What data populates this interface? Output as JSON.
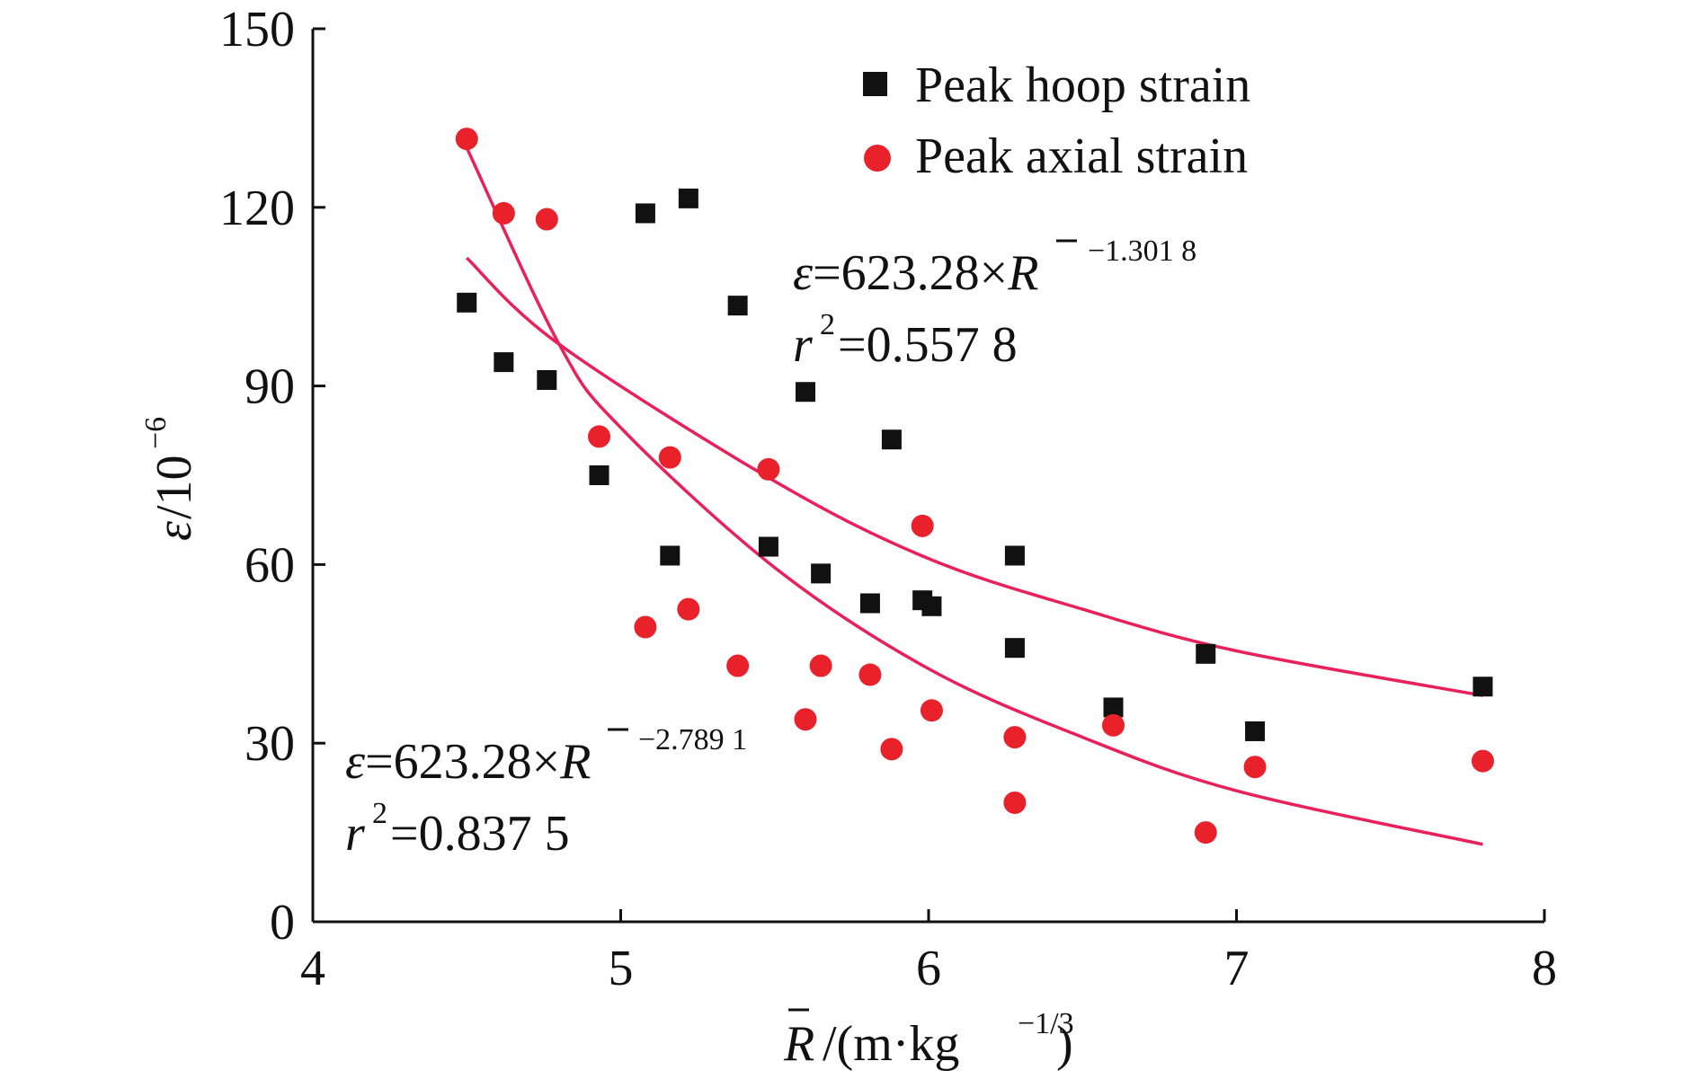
{
  "chart_data": {
    "type": "scatter",
    "xlabel": {
      "symbol": "R",
      "unit_open": "/(m·kg",
      "unit_exp": "−1/3",
      "unit_close": ")"
    },
    "ylabel": {
      "symbol": "ε",
      "unit": "/10",
      "unit_exp": "−6"
    },
    "xlim": [
      4,
      8
    ],
    "ylim": [
      0,
      150
    ],
    "x_ticks": [
      4,
      5,
      6,
      7,
      8
    ],
    "y_ticks": [
      0,
      30,
      60,
      90,
      120,
      150
    ],
    "legend": {
      "position": "top-right",
      "entries": [
        {
          "label": "Peak hoop strain",
          "marker": "square",
          "color": "#111111"
        },
        {
          "label": "Peak axial strain",
          "marker": "circle",
          "color": "#e8212a"
        }
      ]
    },
    "series": [
      {
        "name": "Peak hoop strain",
        "marker": "square",
        "color": "#111111",
        "points": [
          [
            4.5,
            104
          ],
          [
            4.62,
            94
          ],
          [
            4.76,
            91
          ],
          [
            4.93,
            75
          ],
          [
            5.08,
            119
          ],
          [
            5.16,
            61.5
          ],
          [
            5.22,
            121.5
          ],
          [
            5.38,
            103.5
          ],
          [
            5.48,
            63
          ],
          [
            5.6,
            89
          ],
          [
            5.65,
            58.5
          ],
          [
            5.81,
            53.5
          ],
          [
            5.88,
            81
          ],
          [
            5.98,
            54
          ],
          [
            6.01,
            53
          ],
          [
            6.28,
            61.5
          ],
          [
            6.28,
            46
          ],
          [
            6.6,
            36
          ],
          [
            6.9,
            45
          ],
          [
            7.06,
            32
          ],
          [
            7.8,
            39.5
          ]
        ]
      },
      {
        "name": "Peak axial strain",
        "marker": "circle",
        "color": "#e8212a",
        "points": [
          [
            4.5,
            131.5
          ],
          [
            4.62,
            119
          ],
          [
            4.76,
            118
          ],
          [
            4.93,
            81.5
          ],
          [
            5.08,
            49.5
          ],
          [
            5.16,
            78
          ],
          [
            5.22,
            52.5
          ],
          [
            5.38,
            43
          ],
          [
            5.48,
            76
          ],
          [
            5.6,
            34
          ],
          [
            5.65,
            43
          ],
          [
            5.81,
            41.5
          ],
          [
            5.88,
            29
          ],
          [
            5.98,
            66.5
          ],
          [
            6.01,
            35.5
          ],
          [
            6.28,
            31
          ],
          [
            6.28,
            20
          ],
          [
            6.6,
            33
          ],
          [
            6.9,
            15
          ],
          [
            7.06,
            26
          ],
          [
            7.8,
            27
          ]
        ]
      }
    ],
    "fits": [
      {
        "color": "#e8215a",
        "x_range": [
          4.5,
          7.8
        ],
        "anchor_points": [
          [
            4.5,
            111.5
          ],
          [
            4.8,
            97
          ],
          [
            5.5,
            74
          ],
          [
            6.0,
            61
          ],
          [
            6.5,
            52.5
          ],
          [
            7.0,
            45.5
          ],
          [
            7.8,
            38
          ]
        ],
        "equation": {
          "lhs": "ε",
          "text": "=623.28×",
          "var": "R",
          "exponent": "−1.301 8"
        },
        "r2": {
          "var": "r",
          "exp": "2",
          "text": "=0.557 8"
        }
      },
      {
        "color": "#e8215a",
        "x_range": [
          4.5,
          7.8
        ],
        "anchor_points": [
          [
            4.5,
            130
          ],
          [
            4.8,
            97
          ],
          [
            5.0,
            83
          ],
          [
            5.5,
            59.5
          ],
          [
            6.0,
            42.5
          ],
          [
            6.5,
            31
          ],
          [
            7.0,
            22
          ],
          [
            7.8,
            13
          ]
        ],
        "equation": {
          "lhs": "ε",
          "text": "=623.28×",
          "var": "R",
          "exponent": "−2.789 1"
        },
        "r2": {
          "var": "r",
          "exp": "2",
          "text": "=0.837 5"
        }
      }
    ]
  }
}
